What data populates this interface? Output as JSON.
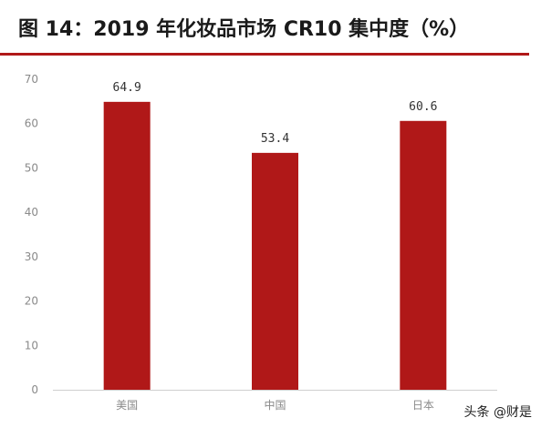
{
  "header": {
    "title": "图 14：2019 年化妆品市场 CR10 集中度（%）"
  },
  "chart_data": {
    "type": "bar",
    "title": "图 14：2019 年化妆品市场 CR10 集中度（%）",
    "xlabel": "",
    "ylabel": "",
    "categories": [
      "美国",
      "中国",
      "日本"
    ],
    "values": [
      64.9,
      53.4,
      60.6
    ],
    "value_labels": [
      "64.9",
      "53.4",
      "60.6"
    ],
    "ylim": [
      0,
      70
    ],
    "yticks": [
      0,
      10,
      20,
      30,
      40,
      50,
      60,
      70
    ],
    "grid": false,
    "legend": "none",
    "bar_color": "#b01818"
  },
  "watermark": {
    "text": "头条 @财是"
  }
}
